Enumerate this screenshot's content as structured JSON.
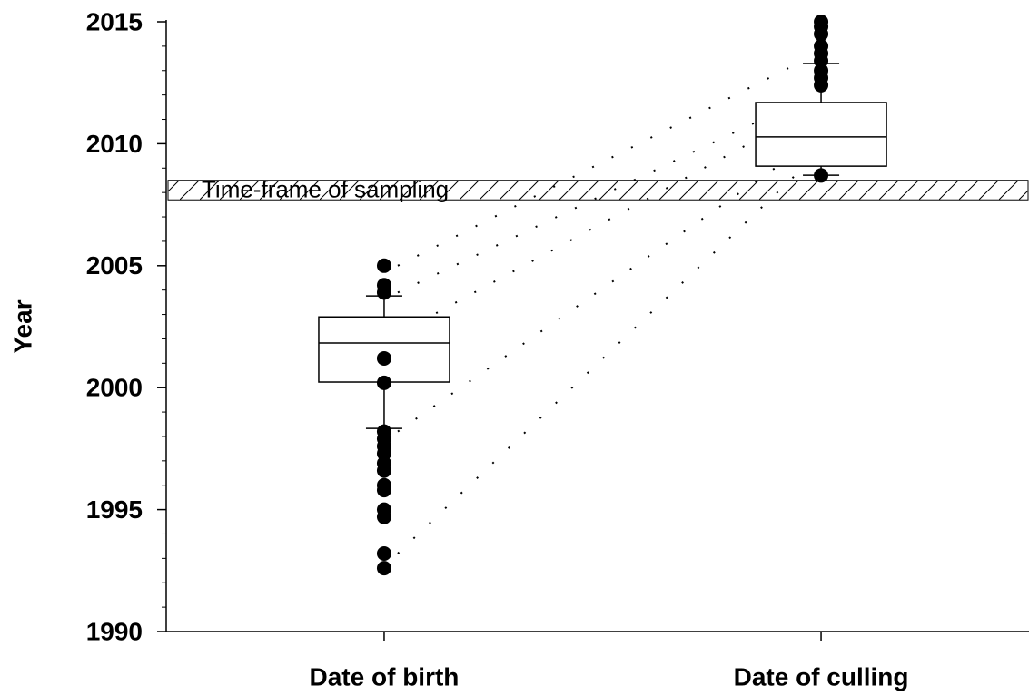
{
  "chart_data": {
    "type": "box",
    "y_label": "Year",
    "categories": [
      "Date of birth",
      "Date of culling"
    ],
    "boxes": [
      {
        "whisker_low": 1998.33,
        "q1": 2000.23,
        "median": 2001.83,
        "q3": 2002.9,
        "whisker_high": 2003.76,
        "outliers": [
          2005.0,
          2004.2,
          2003.9,
          2001.2,
          2000.2,
          1998.2,
          1997.9,
          1997.6,
          1997.3,
          1996.9,
          1996.6,
          1996.0,
          1995.8,
          1995.0,
          1994.7,
          1993.2,
          1992.6
        ]
      },
      {
        "whisker_low": 2008.71,
        "q1": 2009.08,
        "median": 2010.28,
        "q3": 2011.69,
        "whisker_high": 2013.29,
        "outliers": [
          2015.0,
          2014.8,
          2014.5,
          2014.0,
          2013.7,
          2013.4,
          2013.0,
          2012.7,
          2012.4,
          2008.7
        ]
      }
    ],
    "connections": [
      {
        "from": 2005.0,
        "to": 2013.4
      },
      {
        "from": 2003.9,
        "to": 2011.8
      },
      {
        "from": 2002.2,
        "to": 2011.2
      },
      {
        "from": 1998.2,
        "to": 2009.8
      },
      {
        "from": 1993.2,
        "to": 2009.0
      }
    ],
    "band": {
      "from": 2007.7,
      "to": 2008.5,
      "label": "Time-frame of sampling"
    },
    "color": "#000000",
    "ylim": [
      1990,
      2015
    ],
    "yticks": [
      1990,
      1995,
      2000,
      2005,
      2010,
      2015
    ],
    "yminorticks": [
      1991,
      1992,
      1993,
      1994,
      1996,
      1997,
      1998,
      1999,
      2001,
      2002,
      2003,
      2004,
      2006,
      2007,
      2008,
      2009,
      2011,
      2012,
      2013,
      2014
    ]
  }
}
